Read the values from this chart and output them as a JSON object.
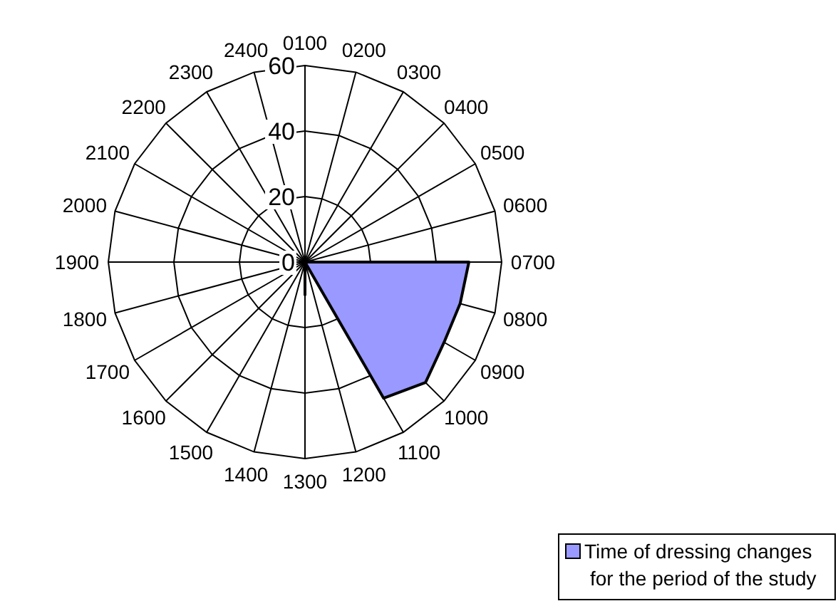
{
  "chart_data": {
    "type": "radar",
    "categories": [
      "0100",
      "0200",
      "0300",
      "0400",
      "0500",
      "0600",
      "0700",
      "0800",
      "0900",
      "1000",
      "1100",
      "1200",
      "1300",
      "1400",
      "1500",
      "1600",
      "1700",
      "1800",
      "1900",
      "2000",
      "2100",
      "2200",
      "2300",
      "2400"
    ],
    "series": [
      {
        "name": "Time of dressing changes for the period of the study",
        "color": "#9999ff",
        "values": [
          0,
          0,
          0,
          0,
          0,
          0,
          50,
          49,
          49,
          52,
          48,
          0,
          10,
          0,
          0,
          0,
          0,
          0,
          0,
          0,
          0,
          0,
          0,
          0
        ]
      }
    ],
    "ylim": [
      0,
      60
    ],
    "yticks": [
      0,
      20,
      40,
      60
    ],
    "legend": "bottom right"
  }
}
